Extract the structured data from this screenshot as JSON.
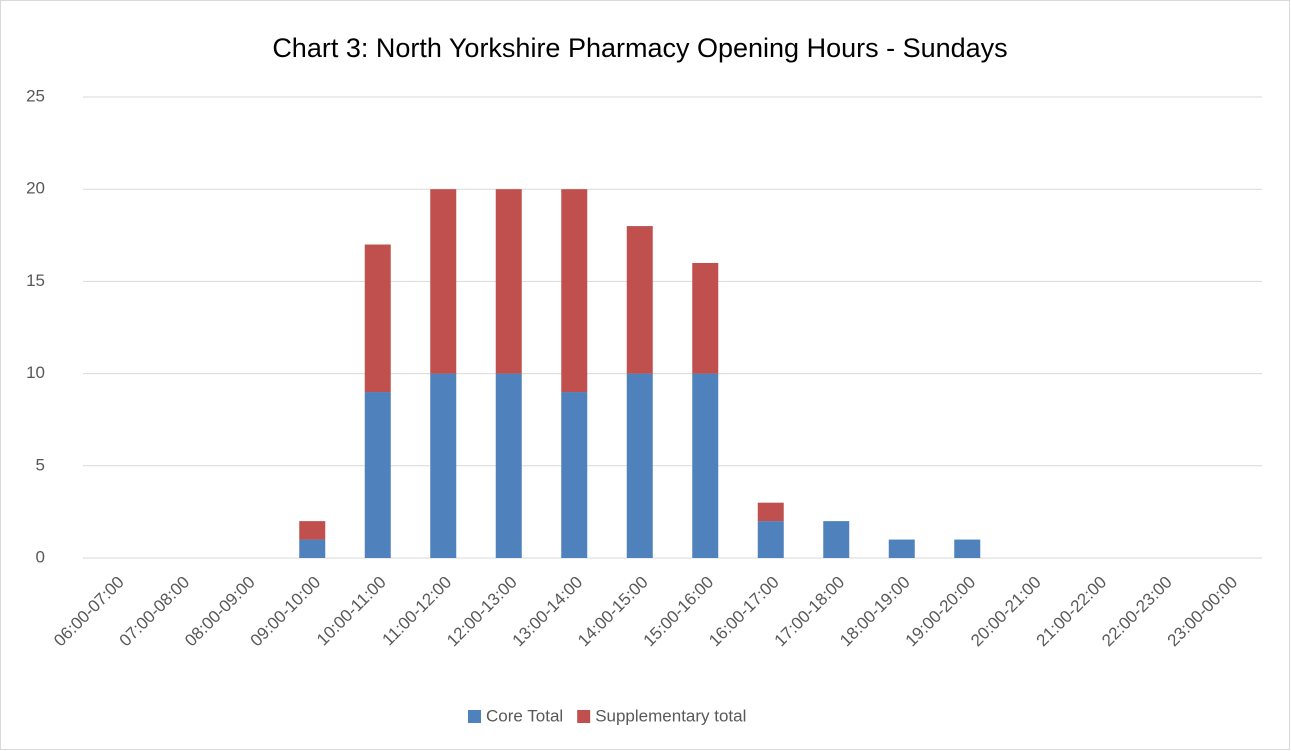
{
  "chart_data": {
    "type": "stacked_bar",
    "title": "Chart 3: North Yorkshire Pharmacy Opening Hours - Sundays",
    "categories": [
      "06:00-07:00",
      "07:00-08:00",
      "08:00-09:00",
      "09:00-10:00",
      "10:00-11:00",
      "11:00-12:00",
      "12:00-13:00",
      "13:00-14:00",
      "14:00-15:00",
      "15:00-16:00",
      "16:00-17:00",
      "17:00-18:00",
      "18:00-19:00",
      "19:00-20:00",
      "20:00-21:00",
      "21:00-22:00",
      "22:00-23:00",
      "23:00-00:00"
    ],
    "series": [
      {
        "name": "Core Total",
        "color": "#4f81bd",
        "values": [
          0,
          0,
          0,
          1,
          9,
          10,
          10,
          9,
          10,
          10,
          2,
          2,
          1,
          1,
          0,
          0,
          0,
          0
        ]
      },
      {
        "name": "Supplementary total",
        "color": "#c0504d",
        "values": [
          0,
          0,
          0,
          1,
          8,
          10,
          10,
          11,
          8,
          6,
          1,
          0,
          0,
          0,
          0,
          0,
          0,
          0
        ]
      }
    ],
    "ylim": [
      0,
      25
    ],
    "yticks": [
      0,
      5,
      10,
      15,
      20,
      25
    ],
    "grid": true,
    "legend": "bottom"
  }
}
